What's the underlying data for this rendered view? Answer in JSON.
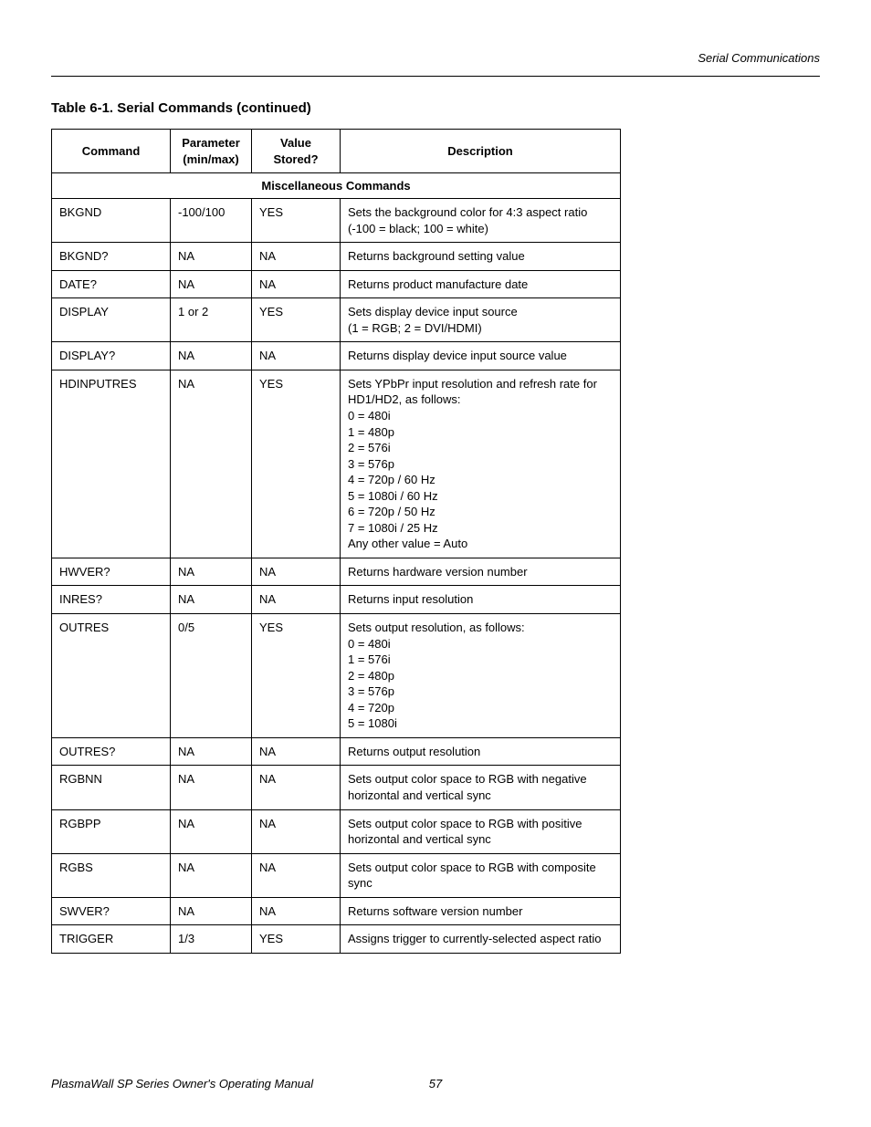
{
  "header": {
    "section_label": "Serial Communications"
  },
  "table": {
    "title": "Table 6-1. Serial Commands (continued)",
    "columns": {
      "command": "Command",
      "parameter": "Parameter\n(min/max)",
      "value_stored": "Value\nStored?",
      "description": "Description"
    },
    "section_header": "Miscellaneous Commands",
    "rows": [
      {
        "command": "BKGND",
        "parameter": "-100/100",
        "value_stored": "YES",
        "description": "Sets the background color for 4:3 aspect ratio (-100 = black; 100 = white)"
      },
      {
        "command": "BKGND?",
        "parameter": "NA",
        "value_stored": "NA",
        "description": "Returns background setting value"
      },
      {
        "command": "DATE?",
        "parameter": "NA",
        "value_stored": "NA",
        "description": "Returns product manufacture date"
      },
      {
        "command": "DISPLAY",
        "parameter": "1 or 2",
        "value_stored": "YES",
        "description": "Sets display device input source\n(1 = RGB; 2 = DVI/HDMI)"
      },
      {
        "command": "DISPLAY?",
        "parameter": "NA",
        "value_stored": "NA",
        "description": "Returns display device input source value"
      },
      {
        "command": "HDINPUTRES",
        "parameter": "NA",
        "value_stored": "YES",
        "description": "Sets YPbPr input resolution and refresh rate for HD1/HD2, as follows:\n0 = 480i\n1 = 480p\n2 = 576i\n3 = 576p\n4 = 720p / 60 Hz\n5 = 1080i / 60 Hz\n6 = 720p / 50 Hz\n7 = 1080i / 25 Hz\nAny other value = Auto"
      },
      {
        "command": "HWVER?",
        "parameter": "NA",
        "value_stored": "NA",
        "description": "Returns hardware version number"
      },
      {
        "command": "INRES?",
        "parameter": "NA",
        "value_stored": "NA",
        "description": "Returns input resolution"
      },
      {
        "command": "OUTRES",
        "parameter": "0/5",
        "value_stored": "YES",
        "description": "Sets output resolution, as follows:\n0 = 480i\n1 = 576i\n2 = 480p\n3 = 576p\n4 = 720p\n5 = 1080i"
      },
      {
        "command": "OUTRES?",
        "parameter": "NA",
        "value_stored": "NA",
        "description": "Returns output resolution"
      },
      {
        "command": "RGBNN",
        "parameter": "NA",
        "value_stored": "NA",
        "description": "Sets output color space to RGB with negative horizontal and vertical sync"
      },
      {
        "command": "RGBPP",
        "parameter": "NA",
        "value_stored": "NA",
        "description": "Sets output color space to RGB with positive horizontal and vertical sync"
      },
      {
        "command": "RGBS",
        "parameter": "NA",
        "value_stored": "NA",
        "description": "Sets output color space to RGB with composite sync"
      },
      {
        "command": "SWVER?",
        "parameter": "NA",
        "value_stored": "NA",
        "description": "Returns software version number"
      },
      {
        "command": "TRIGGER",
        "parameter": "1/3",
        "value_stored": "YES",
        "description": "Assigns trigger to currently-selected aspect ratio"
      }
    ]
  },
  "footer": {
    "doc_title": "PlasmaWall SP Series Owner's Operating Manual",
    "page_number": "57"
  }
}
